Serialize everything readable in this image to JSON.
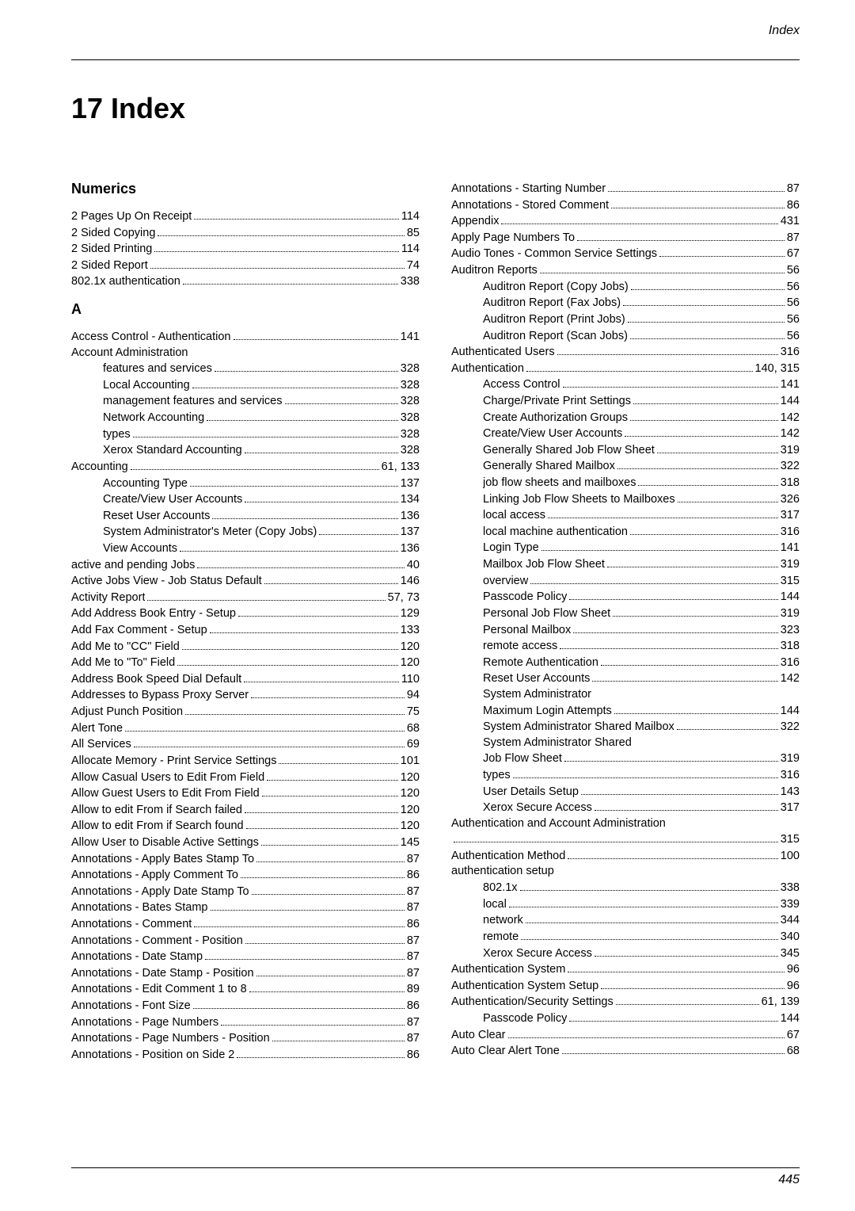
{
  "header": {
    "section_label": "Index"
  },
  "chapter": {
    "title": "17 Index"
  },
  "footer": {
    "page_number": "445"
  },
  "left_column": {
    "sections": [
      {
        "heading": "Numerics",
        "entries": [
          {
            "indent": 0,
            "label": "2 Pages Up On Receipt",
            "pages": "114"
          },
          {
            "indent": 0,
            "label": "2 Sided Copying",
            "pages": "85"
          },
          {
            "indent": 0,
            "label": "2 Sided Printing",
            "pages": "114"
          },
          {
            "indent": 0,
            "label": "2 Sided Report",
            "pages": "74"
          },
          {
            "indent": 0,
            "label": "802.1x authentication",
            "pages": "338"
          }
        ]
      },
      {
        "heading": "A",
        "entries": [
          {
            "indent": 0,
            "label": "Access Control - Authentication",
            "pages": "141"
          },
          {
            "indent": 0,
            "label": "Account Administration",
            "no_page": true
          },
          {
            "indent": 1,
            "label": "features and services",
            "pages": "328"
          },
          {
            "indent": 1,
            "label": "Local Accounting",
            "pages": "328"
          },
          {
            "indent": 1,
            "label": "management features and services",
            "pages": "328"
          },
          {
            "indent": 1,
            "label": "Network Accounting",
            "pages": "328"
          },
          {
            "indent": 1,
            "label": "types",
            "pages": "328"
          },
          {
            "indent": 1,
            "label": "Xerox Standard Accounting",
            "pages": "328"
          },
          {
            "indent": 0,
            "label": "Accounting",
            "pages": "61, 133"
          },
          {
            "indent": 1,
            "label": "Accounting Type",
            "pages": "137"
          },
          {
            "indent": 1,
            "label": "Create/View User Accounts",
            "pages": "134"
          },
          {
            "indent": 1,
            "label": "Reset User Accounts",
            "pages": "136"
          },
          {
            "indent": 1,
            "label": "System Administrator's Meter (Copy Jobs)",
            "pages": "137"
          },
          {
            "indent": 1,
            "label": "View Accounts",
            "pages": "136"
          },
          {
            "indent": 0,
            "label": "active and pending Jobs",
            "pages": "40"
          },
          {
            "indent": 0,
            "label": "Active Jobs View - Job Status Default",
            "pages": "146"
          },
          {
            "indent": 0,
            "label": "Activity Report",
            "pages": "57, 73"
          },
          {
            "indent": 0,
            "label": "Add Address Book Entry - Setup",
            "pages": "129"
          },
          {
            "indent": 0,
            "label": "Add Fax Comment - Setup",
            "pages": "133"
          },
          {
            "indent": 0,
            "label": "Add Me to \"CC\" Field",
            "pages": "120"
          },
          {
            "indent": 0,
            "label": "Add Me to \"To\" Field",
            "pages": "120"
          },
          {
            "indent": 0,
            "label": "Address Book Speed Dial Default",
            "pages": "110"
          },
          {
            "indent": 0,
            "label": "Addresses to Bypass Proxy Server",
            "pages": "94"
          },
          {
            "indent": 0,
            "label": "Adjust Punch Position",
            "pages": "75"
          },
          {
            "indent": 0,
            "label": "Alert Tone",
            "pages": "68"
          },
          {
            "indent": 0,
            "label": "All Services",
            "pages": "69"
          },
          {
            "indent": 0,
            "label": "Allocate Memory - Print Service Settings",
            "pages": "101"
          },
          {
            "indent": 0,
            "label": "Allow Casual Users to Edit From Field",
            "pages": "120"
          },
          {
            "indent": 0,
            "label": "Allow Guest Users to Edit From Field",
            "pages": "120"
          },
          {
            "indent": 0,
            "label": "Allow to edit From if Search failed",
            "pages": "120"
          },
          {
            "indent": 0,
            "label": "Allow to edit From if Search found",
            "pages": "120"
          },
          {
            "indent": 0,
            "label": "Allow User to Disable Active Settings",
            "pages": "145"
          },
          {
            "indent": 0,
            "label": "Annotations - Apply Bates Stamp To",
            "pages": "87"
          },
          {
            "indent": 0,
            "label": "Annotations - Apply Comment To",
            "pages": "86"
          },
          {
            "indent": 0,
            "label": "Annotations - Apply Date Stamp To",
            "pages": "87"
          },
          {
            "indent": 0,
            "label": "Annotations - Bates Stamp",
            "pages": "87"
          },
          {
            "indent": 0,
            "label": "Annotations - Comment",
            "pages": "86"
          },
          {
            "indent": 0,
            "label": "Annotations - Comment - Position",
            "pages": "87"
          },
          {
            "indent": 0,
            "label": "Annotations - Date Stamp",
            "pages": "87"
          },
          {
            "indent": 0,
            "label": "Annotations - Date Stamp - Position",
            "pages": "87"
          },
          {
            "indent": 0,
            "label": "Annotations - Edit Comment 1 to 8",
            "pages": "89"
          },
          {
            "indent": 0,
            "label": "Annotations - Font Size",
            "pages": "86"
          },
          {
            "indent": 0,
            "label": "Annotations - Page Numbers",
            "pages": "87"
          },
          {
            "indent": 0,
            "label": "Annotations - Page Numbers - Position",
            "pages": "87"
          },
          {
            "indent": 0,
            "label": "Annotations - Position on Side 2",
            "pages": "86"
          }
        ]
      }
    ]
  },
  "right_column": {
    "sections": [
      {
        "heading": null,
        "entries": [
          {
            "indent": 0,
            "label": "Annotations - Starting Number",
            "pages": "87"
          },
          {
            "indent": 0,
            "label": "Annotations - Stored Comment",
            "pages": "86"
          },
          {
            "indent": 0,
            "label": "Appendix",
            "pages": "431"
          },
          {
            "indent": 0,
            "label": "Apply Page Numbers To",
            "pages": "87"
          },
          {
            "indent": 0,
            "label": "Audio Tones - Common Service Settings",
            "pages": "67"
          },
          {
            "indent": 0,
            "label": "Auditron Reports",
            "pages": "56"
          },
          {
            "indent": 1,
            "label": "Auditron Report (Copy Jobs)",
            "pages": "56"
          },
          {
            "indent": 1,
            "label": "Auditron Report (Fax Jobs)",
            "pages": "56"
          },
          {
            "indent": 1,
            "label": "Auditron Report (Print Jobs)",
            "pages": "56"
          },
          {
            "indent": 1,
            "label": "Auditron Report (Scan Jobs)",
            "pages": "56"
          },
          {
            "indent": 0,
            "label": "Authenticated Users",
            "pages": "316"
          },
          {
            "indent": 0,
            "label": "Authentication",
            "pages": "140, 315"
          },
          {
            "indent": 1,
            "label": "Access Control",
            "pages": "141"
          },
          {
            "indent": 1,
            "label": "Charge/Private Print Settings",
            "pages": "144"
          },
          {
            "indent": 1,
            "label": "Create Authorization Groups",
            "pages": "142"
          },
          {
            "indent": 1,
            "label": "Create/View User Accounts",
            "pages": "142"
          },
          {
            "indent": 1,
            "label": "Generally Shared Job Flow Sheet",
            "pages": "319"
          },
          {
            "indent": 1,
            "label": "Generally Shared Mailbox",
            "pages": "322"
          },
          {
            "indent": 1,
            "label": "job flow sheets and mailboxes",
            "pages": "318"
          },
          {
            "indent": 1,
            "label": "Linking Job Flow Sheets to Mailboxes",
            "pages": "326"
          },
          {
            "indent": 1,
            "label": "local access",
            "pages": "317"
          },
          {
            "indent": 1,
            "label": "local machine authentication",
            "pages": "316"
          },
          {
            "indent": 1,
            "label": "Login Type",
            "pages": "141"
          },
          {
            "indent": 1,
            "label": "Mailbox Job Flow Sheet",
            "pages": "319"
          },
          {
            "indent": 1,
            "label": "overview",
            "pages": "315"
          },
          {
            "indent": 1,
            "label": "Passcode Policy",
            "pages": "144"
          },
          {
            "indent": 1,
            "label": "Personal Job Flow Sheet",
            "pages": "319"
          },
          {
            "indent": 1,
            "label": "Personal Mailbox",
            "pages": "323"
          },
          {
            "indent": 1,
            "label": "remote access",
            "pages": "318"
          },
          {
            "indent": 1,
            "label": "Remote Authentication",
            "pages": "316"
          },
          {
            "indent": 1,
            "label": "Reset User Accounts",
            "pages": "142"
          },
          {
            "indent": 1,
            "label": "System Administrator",
            "no_page": true
          },
          {
            "indent": 1,
            "label": "Maximum Login Attempts",
            "pages": "144"
          },
          {
            "indent": 1,
            "label": "System Administrator Shared Mailbox",
            "pages": "322"
          },
          {
            "indent": 1,
            "label": "System Administrator Shared",
            "no_page": true
          },
          {
            "indent": 1,
            "label": "Job Flow Sheet",
            "pages": "319"
          },
          {
            "indent": 1,
            "label": "types",
            "pages": "316"
          },
          {
            "indent": 1,
            "label": "User Details Setup",
            "pages": "143"
          },
          {
            "indent": 1,
            "label": "Xerox Secure Access",
            "pages": "317"
          },
          {
            "indent": 0,
            "label": "Authentication and Account Administration",
            "no_page": true
          },
          {
            "indent": 0,
            "label": "",
            "pages": "315"
          },
          {
            "indent": 0,
            "label": "Authentication Method",
            "pages": "100"
          },
          {
            "indent": 0,
            "label": "authentication setup",
            "no_page": true
          },
          {
            "indent": 1,
            "label": "802.1x",
            "pages": "338"
          },
          {
            "indent": 1,
            "label": "local",
            "pages": "339"
          },
          {
            "indent": 1,
            "label": "network",
            "pages": "344"
          },
          {
            "indent": 1,
            "label": "remote",
            "pages": "340"
          },
          {
            "indent": 1,
            "label": "Xerox Secure Access",
            "pages": "345"
          },
          {
            "indent": 0,
            "label": "Authentication System",
            "pages": "96"
          },
          {
            "indent": 0,
            "label": "Authentication System Setup",
            "pages": "96"
          },
          {
            "indent": 0,
            "label": "Authentication/Security Settings",
            "pages": "61, 139"
          },
          {
            "indent": 1,
            "label": "Passcode Policy",
            "pages": "144"
          },
          {
            "indent": 0,
            "label": "Auto Clear",
            "pages": "67"
          },
          {
            "indent": 0,
            "label": "Auto Clear Alert Tone",
            "pages": "68"
          }
        ]
      }
    ]
  }
}
